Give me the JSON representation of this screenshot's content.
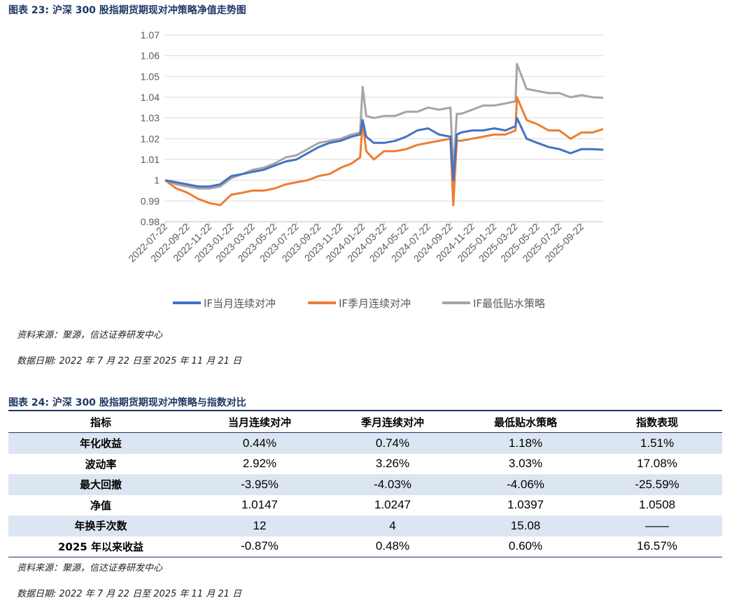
{
  "figure1": {
    "title": "图表 23:  沪深 300 股指期货期现对冲策略净值走势图",
    "source": "资料来源：聚源，信达证券研发中心",
    "date_note": "数据日期:   2022 年 7 月 22 日至 2025 年 11 月 21 日"
  },
  "figure2": {
    "title": "图表 24:  沪深 300 股指期货期现对冲策略与指数对比",
    "headers": [
      "指标",
      "当月连续对冲",
      "季月连续对冲",
      "最低贴水策略",
      "指数表现"
    ],
    "rows": [
      [
        "年化收益",
        "0.44%",
        "0.74%",
        "1.18%",
        "1.51%"
      ],
      [
        "波动率",
        "2.92%",
        "3.26%",
        "3.03%",
        "17.08%"
      ],
      [
        "最大回撤",
        "-3.95%",
        "-4.03%",
        "-4.06%",
        "-25.59%"
      ],
      [
        "净值",
        "1.0147",
        "1.0247",
        "1.0397",
        "1.0508"
      ],
      [
        "年换手次数",
        "12",
        "4",
        "15.08",
        "——"
      ],
      [
        "2025 年以来收益",
        "-0.87%",
        "0.48%",
        "0.60%",
        "16.57%"
      ]
    ],
    "source": "资料来源：聚源，信达证券研发中心",
    "date_note": "数据日期:   2022 年 7 月 22 日至 2025 年 11 月 21 日"
  },
  "chart_data": {
    "type": "line",
    "title": "",
    "xlabel": "",
    "ylabel": "",
    "ylim": [
      0.98,
      1.07
    ],
    "yticks": [
      0.98,
      0.99,
      1,
      1.01,
      1.02,
      1.03,
      1.04,
      1.05,
      1.06,
      1.07
    ],
    "grid": "horizontal",
    "legend_position": "bottom",
    "xtick_labels": [
      "2022-07-22",
      "2022-09-22",
      "2022-11-22",
      "2023-01-22",
      "2023-03-22",
      "2023-05-22",
      "2023-07-22",
      "2023-09-22",
      "2023-11-22",
      "2024-01-22",
      "2024-03-22",
      "2024-05-22",
      "2024-07-22",
      "2024-09-22",
      "2024-11-22",
      "2025-01-22",
      "2025-03-22",
      "2025-05-22",
      "2025-07-22",
      "2025-09-22"
    ],
    "x": [
      "2022-07-22",
      "2022-08-22",
      "2022-09-22",
      "2022-10-22",
      "2022-11-22",
      "2022-12-22",
      "2023-01-22",
      "2023-02-22",
      "2023-03-22",
      "2023-04-22",
      "2023-05-22",
      "2023-06-22",
      "2023-07-22",
      "2023-08-22",
      "2023-09-22",
      "2023-10-22",
      "2023-11-22",
      "2023-12-22",
      "2024-01-15",
      "2024-01-22",
      "2024-02-01",
      "2024-02-22",
      "2024-03-22",
      "2024-04-22",
      "2024-05-22",
      "2024-06-22",
      "2024-07-22",
      "2024-08-22",
      "2024-09-22",
      "2024-09-30",
      "2024-10-10",
      "2024-10-22",
      "2024-11-22",
      "2024-12-22",
      "2025-01-22",
      "2025-02-22",
      "2025-03-22",
      "2025-03-26",
      "2025-04-22",
      "2025-05-22",
      "2025-06-22",
      "2025-07-22",
      "2025-08-22",
      "2025-09-22",
      "2025-10-22",
      "2025-11-21"
    ],
    "series": [
      {
        "name": "IF当月连续对冲",
        "color": "#4472c4",
        "values": [
          1.0,
          0.999,
          0.998,
          0.997,
          0.997,
          0.998,
          1.002,
          1.003,
          1.004,
          1.005,
          1.007,
          1.009,
          1.01,
          1.013,
          1.016,
          1.018,
          1.019,
          1.021,
          1.022,
          1.029,
          1.021,
          1.018,
          1.018,
          1.019,
          1.021,
          1.024,
          1.025,
          1.022,
          1.021,
          1.0,
          1.022,
          1.023,
          1.024,
          1.024,
          1.025,
          1.024,
          1.026,
          1.03,
          1.02,
          1.018,
          1.016,
          1.015,
          1.013,
          1.015,
          1.015,
          1.0147
        ]
      },
      {
        "name": "IF季月连续对冲",
        "color": "#ed7d31",
        "values": [
          1.0,
          0.996,
          0.994,
          0.991,
          0.989,
          0.988,
          0.993,
          0.994,
          0.995,
          0.995,
          0.996,
          0.998,
          0.999,
          1.0,
          1.002,
          1.003,
          1.006,
          1.008,
          1.011,
          1.028,
          1.014,
          1.01,
          1.014,
          1.014,
          1.015,
          1.017,
          1.018,
          1.019,
          1.02,
          0.988,
          1.019,
          1.019,
          1.02,
          1.021,
          1.022,
          1.022,
          1.024,
          1.04,
          1.029,
          1.027,
          1.024,
          1.024,
          1.02,
          1.023,
          1.023,
          1.0247
        ]
      },
      {
        "name": "IF最低贴水策略",
        "color": "#a5a5a5",
        "values": [
          1.0,
          0.998,
          0.997,
          0.996,
          0.996,
          0.997,
          1.001,
          1.003,
          1.005,
          1.006,
          1.008,
          1.011,
          1.012,
          1.015,
          1.018,
          1.019,
          1.02,
          1.022,
          1.023,
          1.045,
          1.031,
          1.03,
          1.031,
          1.031,
          1.033,
          1.033,
          1.035,
          1.034,
          1.035,
          1.005,
          1.032,
          1.032,
          1.034,
          1.036,
          1.036,
          1.037,
          1.038,
          1.056,
          1.044,
          1.043,
          1.042,
          1.042,
          1.04,
          1.041,
          1.04,
          1.0397
        ]
      }
    ]
  }
}
